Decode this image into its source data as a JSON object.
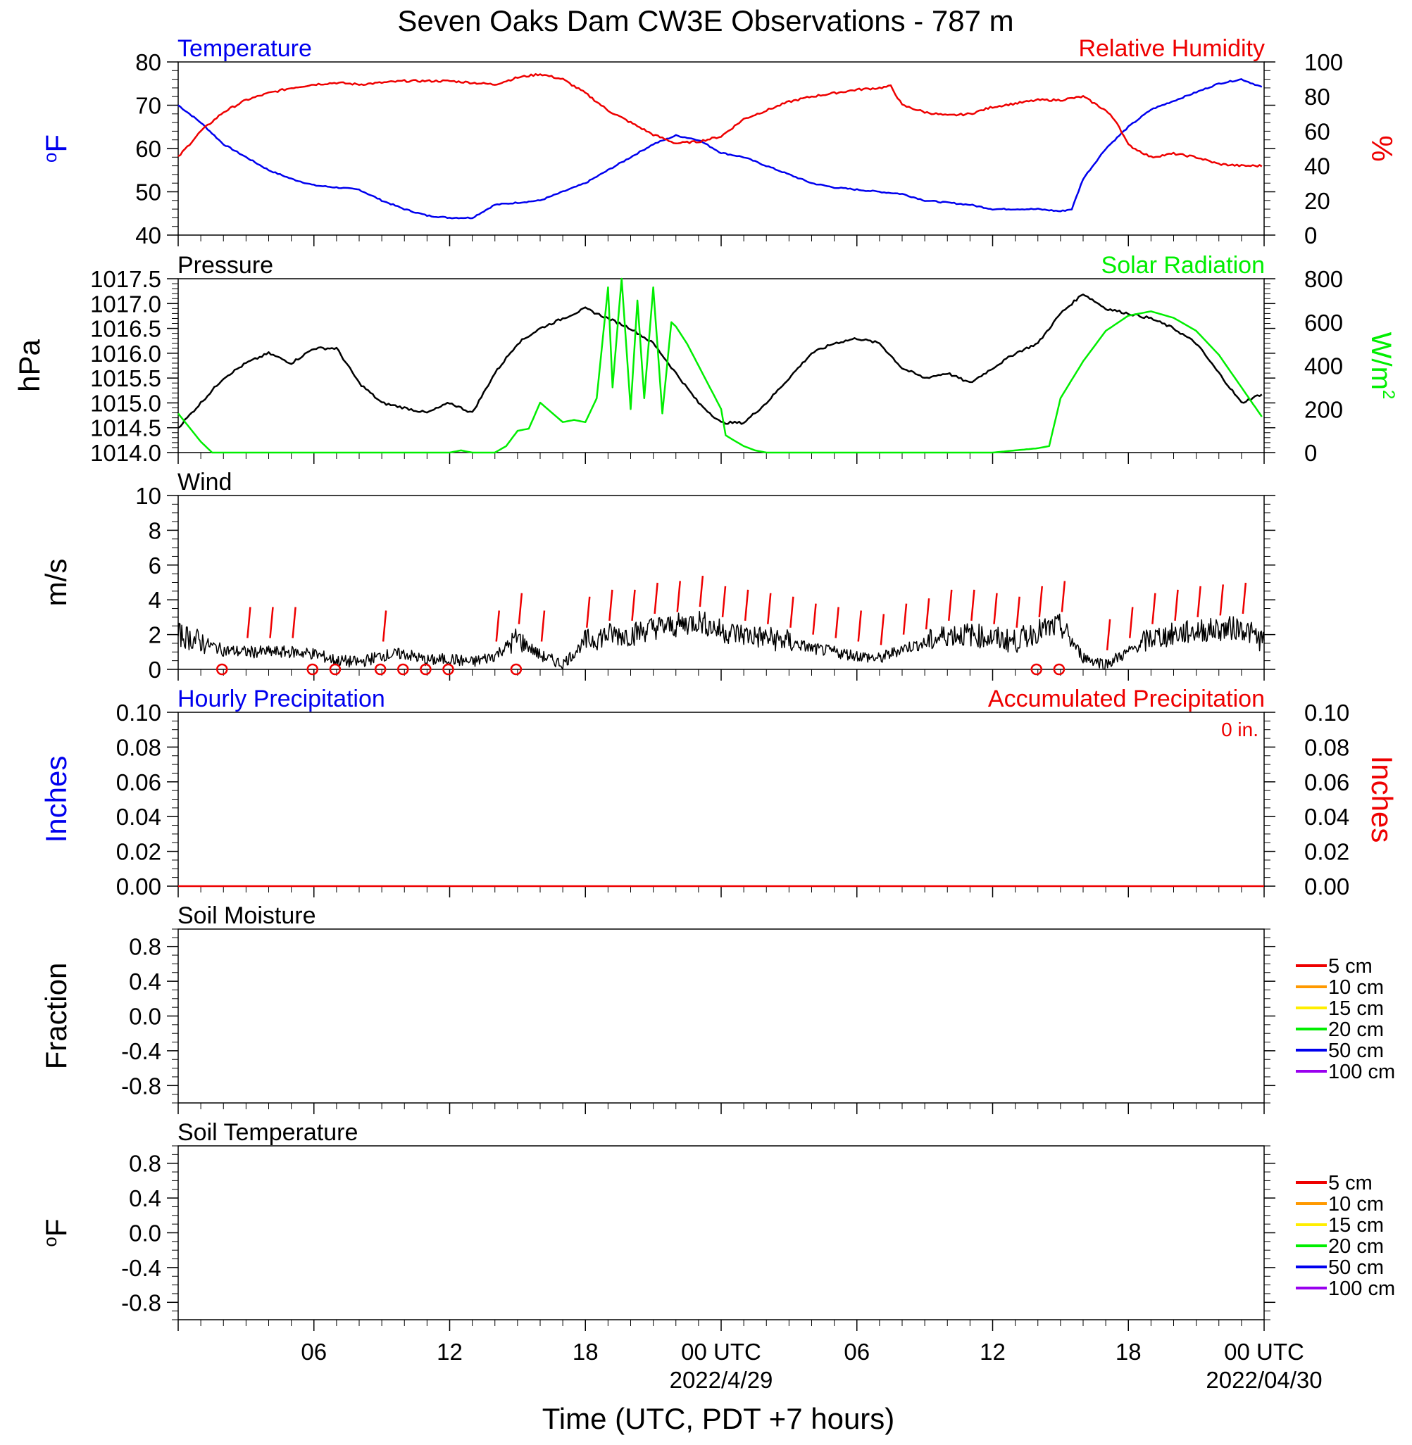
{
  "title": "Seven Oaks Dam CW3E Observations - 787 m",
  "x_axis": {
    "label": "Time (UTC, PDT +7 hours)",
    "range_hours": [
      0,
      48
    ],
    "ticks": [
      {
        "hour": 6,
        "label": "06",
        "sub": ""
      },
      {
        "hour": 12,
        "label": "12",
        "sub": ""
      },
      {
        "hour": 18,
        "label": "18",
        "sub": ""
      },
      {
        "hour": 24,
        "label": "00 UTC",
        "sub": "2022/4/29"
      },
      {
        "hour": 30,
        "label": "06",
        "sub": ""
      },
      {
        "hour": 36,
        "label": "12",
        "sub": ""
      },
      {
        "hour": 42,
        "label": "18",
        "sub": ""
      },
      {
        "hour": 48,
        "label": "00 UTC",
        "sub": "2022/04/30"
      }
    ]
  },
  "chart_data": [
    {
      "type": "line",
      "panel": "temperature_humidity",
      "left_title": "Temperature",
      "right_title": "Relative Humidity",
      "left_unit": "oF",
      "right_unit": "%",
      "left_ylim": [
        40,
        80
      ],
      "left_ticks": [
        "40",
        "50",
        "60",
        "70",
        "80"
      ],
      "right_ylim": [
        0,
        100
      ],
      "right_ticks": [
        "0",
        "20",
        "40",
        "60",
        "80",
        "100"
      ],
      "series": [
        {
          "axis": "left",
          "color": "#0000ee",
          "x": [
            0,
            1,
            2,
            3,
            4,
            5,
            6,
            7,
            8,
            9,
            10,
            11,
            12,
            13,
            14,
            15,
            16,
            17,
            18,
            19,
            20,
            21,
            21.5,
            22,
            23,
            24,
            25,
            26,
            27,
            28,
            29,
            30,
            31,
            32,
            33,
            34,
            35,
            36,
            37,
            38,
            39,
            39.5,
            40,
            41,
            42,
            43,
            44,
            45,
            46,
            47,
            47.5,
            48
          ],
          "values": [
            70,
            66,
            61,
            58,
            55,
            53,
            51.5,
            51,
            50.5,
            48,
            46,
            44.5,
            44,
            44,
            47,
            47.5,
            48,
            50,
            52,
            55,
            58,
            61,
            62,
            63,
            62,
            59,
            58,
            56,
            54,
            52,
            51,
            50.5,
            50,
            49.5,
            48,
            47.5,
            47,
            46,
            46,
            46,
            45.5,
            46,
            53,
            60,
            65,
            69,
            71,
            73,
            75,
            76,
            75,
            74
          ]
        },
        {
          "axis": "right",
          "color": "#ee0000",
          "x": [
            0,
            1,
            2,
            3,
            4,
            5,
            6,
            7,
            8,
            9,
            10,
            11,
            12,
            13,
            14,
            15,
            16,
            17,
            18,
            19,
            20,
            21,
            22,
            23,
            24,
            25,
            26,
            27,
            28,
            29,
            30,
            31,
            31.5,
            32,
            33,
            34,
            35,
            36,
            37,
            38,
            39,
            40,
            41,
            41.5,
            42,
            43,
            44,
            45,
            46,
            47,
            48
          ],
          "values": [
            45,
            60,
            71,
            78,
            82,
            85,
            87,
            88,
            87,
            88,
            89,
            89,
            89,
            88,
            87,
            91,
            93,
            90,
            82,
            72,
            65,
            58,
            53,
            54,
            57,
            67,
            72,
            77,
            80,
            82,
            84,
            85,
            86,
            75,
            71,
            69,
            70,
            74,
            76,
            78,
            78,
            80,
            72,
            65,
            52,
            45,
            47,
            45,
            41,
            40,
            40
          ]
        }
      ]
    },
    {
      "type": "line",
      "panel": "pressure_solar",
      "left_title": "Pressure",
      "right_title": "Solar Radiation",
      "left_unit": "hPa",
      "right_unit": "W/m2",
      "left_ylim": [
        1014.0,
        1017.5
      ],
      "left_ticks": [
        "1014.0",
        "1014.5",
        "1015.0",
        "1015.5",
        "1016.0",
        "1016.5",
        "1017.0",
        "1017.5"
      ],
      "right_ylim": [
        0,
        800
      ],
      "right_ticks": [
        "0",
        "200",
        "400",
        "600",
        "800"
      ],
      "series": [
        {
          "axis": "left",
          "color": "#000000",
          "x": [
            0,
            1,
            2,
            3,
            4,
            5,
            6,
            7,
            8,
            9,
            10,
            11,
            12,
            13,
            14,
            15,
            16,
            17,
            18,
            19,
            20,
            21,
            22,
            23,
            24,
            25,
            26,
            27,
            28,
            29,
            30,
            31,
            32,
            33,
            34,
            35,
            36,
            37,
            38,
            39,
            40,
            41,
            42,
            43,
            44,
            45,
            46,
            47,
            48
          ],
          "values": [
            1014.5,
            1015.0,
            1015.5,
            1015.8,
            1016.0,
            1015.8,
            1016.1,
            1016.1,
            1015.4,
            1015.0,
            1014.9,
            1014.8,
            1015.0,
            1014.8,
            1015.6,
            1016.2,
            1016.5,
            1016.7,
            1016.9,
            1016.7,
            1016.5,
            1016.2,
            1015.6,
            1015.0,
            1014.6,
            1014.6,
            1015.0,
            1015.5,
            1016.0,
            1016.2,
            1016.3,
            1016.2,
            1015.7,
            1015.5,
            1015.6,
            1015.4,
            1015.7,
            1016.0,
            1016.2,
            1016.8,
            1017.2,
            1016.9,
            1016.8,
            1016.7,
            1016.5,
            1016.2,
            1015.6,
            1015.0,
            1015.2
          ]
        },
        {
          "axis": "right",
          "color": "#00ee00",
          "x": [
            0,
            1,
            1.5,
            12,
            12.5,
            13,
            14,
            14.5,
            15,
            15.5,
            16,
            17,
            17.5,
            18,
            18.5,
            19,
            19.2,
            19.6,
            20,
            20.3,
            20.6,
            21,
            21.4,
            21.8,
            22,
            22.5,
            23,
            23.5,
            24,
            24.2,
            24.5,
            25,
            25.5,
            26,
            32,
            34,
            36,
            37,
            38,
            38.5,
            39,
            40,
            41,
            42,
            43,
            44,
            45,
            46,
            47,
            48
          ],
          "values": [
            180,
            50,
            0,
            0,
            10,
            0,
            0,
            30,
            100,
            110,
            230,
            140,
            150,
            140,
            250,
            760,
            300,
            800,
            200,
            700,
            250,
            760,
            180,
            600,
            580,
            500,
            400,
            300,
            200,
            80,
            60,
            30,
            10,
            0,
            0,
            0,
            0,
            10,
            20,
            30,
            250,
            420,
            560,
            630,
            650,
            620,
            560,
            450,
            300,
            150
          ]
        }
      ]
    },
    {
      "type": "line",
      "panel": "wind",
      "left_title": "Wind",
      "left_unit": "m/s",
      "left_ylim": [
        0,
        10
      ],
      "left_ticks": [
        "0",
        "2",
        "4",
        "6",
        "8",
        "10"
      ],
      "series": [
        {
          "axis": "left",
          "color": "#000000",
          "x": [
            0,
            1,
            2,
            3,
            4,
            5,
            6,
            7,
            8,
            9,
            10,
            11,
            12,
            13,
            14,
            15,
            16,
            17,
            18,
            19,
            20,
            21,
            22,
            23,
            24,
            25,
            26,
            27,
            28,
            29,
            30,
            31,
            32,
            33,
            34,
            35,
            36,
            37,
            38,
            39,
            40,
            41,
            42,
            43,
            44,
            45,
            46,
            47,
            48
          ],
          "values": [
            2.0,
            1.6,
            1.1,
            1.0,
            1.0,
            1.0,
            0.9,
            0.5,
            0.4,
            0.8,
            0.9,
            0.5,
            0.6,
            0.4,
            0.8,
            1.8,
            0.8,
            0.3,
            1.6,
            2.0,
            2.0,
            2.4,
            2.5,
            2.8,
            2.2,
            2.0,
            1.8,
            1.6,
            1.2,
            1.0,
            0.8,
            0.6,
            1.2,
            1.5,
            2.0,
            2.0,
            1.8,
            1.6,
            2.2,
            2.5,
            0.7,
            0.3,
            1.0,
            1.8,
            2.0,
            2.2,
            2.3,
            2.4,
            1.6
          ]
        }
      ],
      "wind_barbs": {
        "color": "#ee0000",
        "barb_hours": [
          3,
          4,
          5,
          9,
          14,
          15,
          16,
          18,
          19,
          20,
          21,
          22,
          23,
          24,
          25,
          26,
          27,
          28,
          29,
          30,
          31,
          32,
          33,
          34,
          35,
          36,
          37,
          38,
          39,
          41,
          42,
          43,
          44,
          45,
          46,
          47
        ],
        "calm_hours": [
          2,
          6,
          7,
          9,
          10,
          11,
          12,
          15,
          38,
          39
        ]
      }
    },
    {
      "type": "line",
      "panel": "precipitation",
      "left_title": "Hourly Precipitation",
      "right_title": "Accumulated Precipitation",
      "annotation": "0 in.",
      "left_unit": "Inches",
      "right_unit": "Inches",
      "left_ylim": [
        0,
        0.1
      ],
      "left_ticks": [
        "0.00",
        "0.02",
        "0.04",
        "0.06",
        "0.08",
        "0.10"
      ],
      "right_ylim": [
        0,
        0.1
      ],
      "right_ticks": [
        "0.00",
        "0.02",
        "0.04",
        "0.06",
        "0.08",
        "0.10"
      ],
      "series": [
        {
          "axis": "right",
          "color": "#ee0000",
          "x": [
            0,
            48
          ],
          "values": [
            0,
            0
          ]
        }
      ]
    },
    {
      "type": "line",
      "panel": "soil_moisture",
      "left_title": "Soil Moisture",
      "left_unit": "Fraction",
      "left_ylim": [
        -1,
        1
      ],
      "left_ticks": [
        "-0.8",
        "-0.4",
        "0.0",
        "0.4",
        "0.8"
      ],
      "series": [],
      "legend": [
        {
          "label": "5 cm",
          "color": "#ee0000"
        },
        {
          "label": "10 cm",
          "color": "#ff9900"
        },
        {
          "label": "15 cm",
          "color": "#ffee00"
        },
        {
          "label": "20 cm",
          "color": "#00ee00"
        },
        {
          "label": "50 cm",
          "color": "#0000ee"
        },
        {
          "label": "100 cm",
          "color": "#9900ee"
        }
      ]
    },
    {
      "type": "line",
      "panel": "soil_temperature",
      "left_title": "Soil Temperature",
      "left_unit": "oF",
      "left_ylim": [
        -1,
        1
      ],
      "left_ticks": [
        "-0.8",
        "-0.4",
        "0.0",
        "0.4",
        "0.8"
      ],
      "series": [],
      "legend": [
        {
          "label": "5 cm",
          "color": "#ee0000"
        },
        {
          "label": "10 cm",
          "color": "#ff9900"
        },
        {
          "label": "15 cm",
          "color": "#ffee00"
        },
        {
          "label": "20 cm",
          "color": "#00ee00"
        },
        {
          "label": "50 cm",
          "color": "#0000ee"
        },
        {
          "label": "100 cm",
          "color": "#9900ee"
        }
      ]
    }
  ]
}
